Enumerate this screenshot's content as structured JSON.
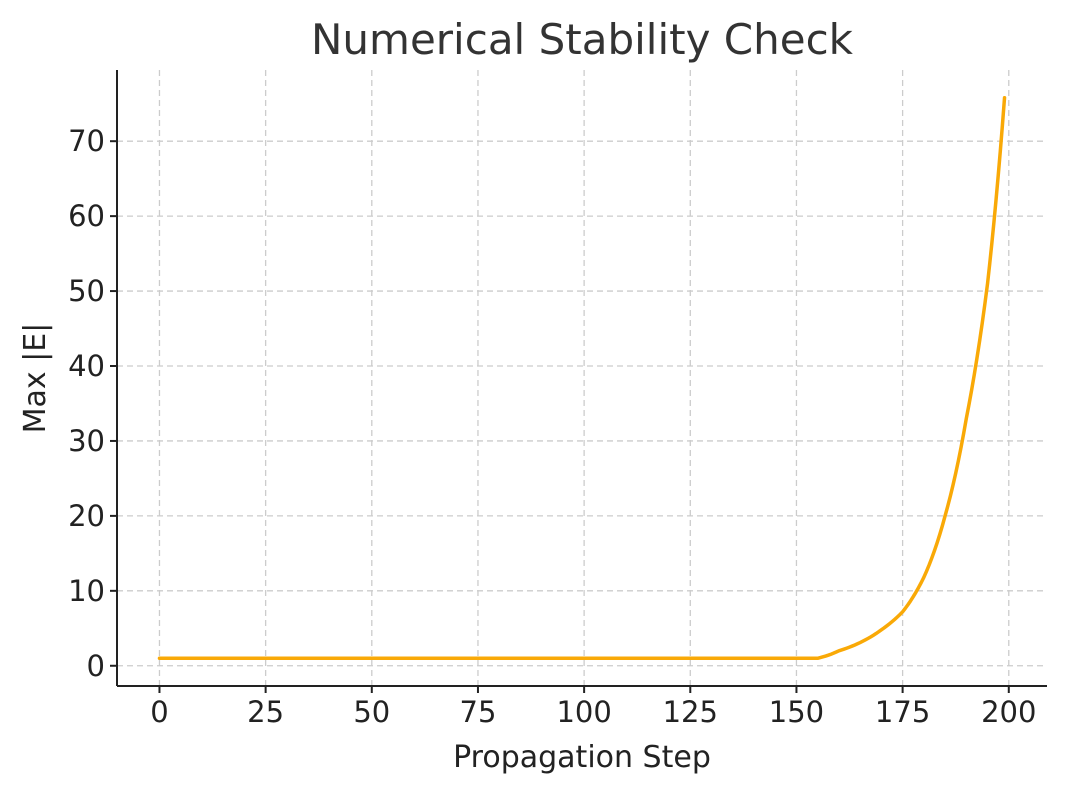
{
  "chart_data": {
    "type": "line",
    "title": "Numerical Stability Check",
    "xlabel": "Propagation Step",
    "ylabel": "Max |E|",
    "xlim": [
      -10,
      209
    ],
    "ylim": [
      -2.7,
      79.5
    ],
    "xticks": [
      0,
      25,
      50,
      75,
      100,
      125,
      150,
      175,
      200
    ],
    "yticks": [
      0,
      10,
      20,
      30,
      40,
      50,
      60,
      70
    ],
    "grid": true,
    "series": [
      {
        "color": "#f9a907",
        "x": [
          0,
          25,
          50,
          75,
          100,
          125,
          150,
          155,
          160,
          165,
          170,
          175,
          180,
          185,
          190,
          195,
          199
        ],
        "y": [
          1.0,
          1.0,
          1.0,
          1.0,
          1.0,
          1.0,
          1.0,
          1.0,
          2.0,
          3.1,
          4.8,
          7.2,
          11.8,
          20.0,
          33.0,
          51.0,
          75.8
        ]
      }
    ]
  }
}
